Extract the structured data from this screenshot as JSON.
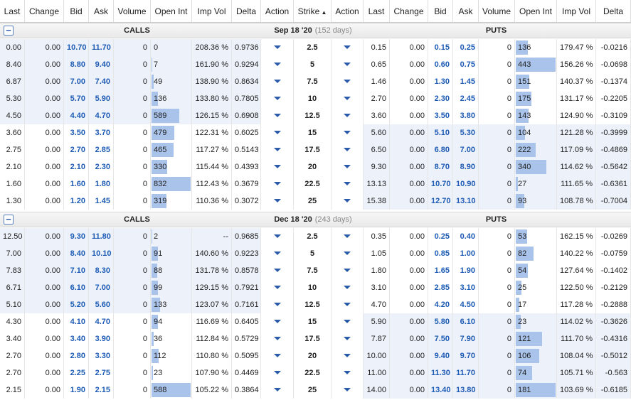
{
  "columns": [
    "Last",
    "Change",
    "Bid",
    "Ask",
    "Volume",
    "Open Int",
    "Imp Vol",
    "Delta",
    "Action",
    "Strike",
    "Action",
    "Last",
    "Change",
    "Bid",
    "Ask",
    "Volume",
    "Open Int",
    "Imp Vol",
    "Delta"
  ],
  "sections": [
    {
      "calls_label": "CALLS",
      "date": "Sep 18 '20",
      "days": "(152 days)",
      "puts_label": "PUTS",
      "rows": [
        {
          "itm": "calls",
          "cells": [
            "0.00",
            "0.00",
            "10.70",
            "11.70",
            "0",
            "0",
            "208.36 %",
            "0.9736",
            "2.5",
            "0.15",
            "0.00",
            "0.15",
            "0.25",
            "0",
            "136",
            "179.47 %",
            "-0.0216"
          ]
        },
        {
          "itm": "calls",
          "cells": [
            "8.40",
            "0.00",
            "8.80",
            "9.40",
            "0",
            "7",
            "161.90 %",
            "0.9294",
            "5",
            "0.65",
            "0.00",
            "0.60",
            "0.75",
            "0",
            "443",
            "156.26 %",
            "-0.0698"
          ]
        },
        {
          "itm": "calls",
          "cells": [
            "6.87",
            "0.00",
            "7.00",
            "7.40",
            "0",
            "49",
            "138.90 %",
            "0.8634",
            "7.5",
            "1.46",
            "0.00",
            "1.30",
            "1.45",
            "0",
            "151",
            "140.37 %",
            "-0.1374"
          ]
        },
        {
          "itm": "calls",
          "cells": [
            "5.30",
            "0.00",
            "5.70",
            "5.90",
            "0",
            "136",
            "133.80 %",
            "0.7805",
            "10",
            "2.70",
            "0.00",
            "2.30",
            "2.45",
            "0",
            "175",
            "131.17 %",
            "-0.2205"
          ]
        },
        {
          "itm": "calls",
          "cells": [
            "4.50",
            "0.00",
            "4.40",
            "4.70",
            "0",
            "589",
            "126.15 %",
            "0.6908",
            "12.5",
            "3.60",
            "0.00",
            "3.50",
            "3.80",
            "0",
            "143",
            "124.90 %",
            "-0.3109"
          ]
        },
        {
          "itm": "puts",
          "cells": [
            "3.60",
            "0.00",
            "3.50",
            "3.70",
            "0",
            "479",
            "122.31 %",
            "0.6025",
            "15",
            "5.60",
            "0.00",
            "5.10",
            "5.30",
            "0",
            "104",
            "121.28 %",
            "-0.3999"
          ]
        },
        {
          "itm": "puts",
          "cells": [
            "2.75",
            "0.00",
            "2.70",
            "2.85",
            "0",
            "465",
            "117.27 %",
            "0.5143",
            "17.5",
            "6.50",
            "0.00",
            "6.80",
            "7.00",
            "0",
            "222",
            "117.09 %",
            "-0.4869"
          ]
        },
        {
          "itm": "puts",
          "cells": [
            "2.10",
            "0.00",
            "2.10",
            "2.30",
            "0",
            "330",
            "115.44 %",
            "0.4393",
            "20",
            "9.30",
            "0.00",
            "8.70",
            "8.90",
            "0",
            "340",
            "114.62 %",
            "-0.5642"
          ]
        },
        {
          "itm": "puts",
          "cells": [
            "1.60",
            "0.00",
            "1.60",
            "1.80",
            "0",
            "832",
            "112.43 %",
            "0.3679",
            "22.5",
            "13.13",
            "0.00",
            "10.70",
            "10.90",
            "0",
            "27",
            "111.65 %",
            "-0.6361"
          ]
        },
        {
          "itm": "puts",
          "cells": [
            "1.30",
            "0.00",
            "1.20",
            "1.45",
            "0",
            "319",
            "110.36 %",
            "0.3072",
            "25",
            "15.38",
            "0.00",
            "12.70",
            "13.10",
            "0",
            "93",
            "108.78 %",
            "-0.7004"
          ]
        }
      ]
    },
    {
      "calls_label": "CALLS",
      "date": "Dec 18 '20",
      "days": "(243 days)",
      "puts_label": "PUTS",
      "rows": [
        {
          "itm": "calls",
          "cells": [
            "12.50",
            "0.00",
            "9.30",
            "11.80",
            "0",
            "2",
            "--",
            "0.9685",
            "2.5",
            "0.35",
            "0.00",
            "0.25",
            "0.40",
            "0",
            "53",
            "162.15 %",
            "-0.0269"
          ]
        },
        {
          "itm": "calls",
          "cells": [
            "7.00",
            "0.00",
            "8.40",
            "10.10",
            "0",
            "91",
            "140.60 %",
            "0.9223",
            "5",
            "1.05",
            "0.00",
            "0.85",
            "1.00",
            "0",
            "82",
            "140.22 %",
            "-0.0759"
          ]
        },
        {
          "itm": "calls",
          "cells": [
            "7.83",
            "0.00",
            "7.10",
            "8.30",
            "0",
            "88",
            "131.78 %",
            "0.8578",
            "7.5",
            "1.80",
            "0.00",
            "1.65",
            "1.90",
            "0",
            "54",
            "127.64 %",
            "-0.1402"
          ]
        },
        {
          "itm": "calls",
          "cells": [
            "6.71",
            "0.00",
            "6.10",
            "7.00",
            "0",
            "99",
            "129.15 %",
            "0.7921",
            "10",
            "3.10",
            "0.00",
            "2.85",
            "3.10",
            "0",
            "25",
            "122.50 %",
            "-0.2129"
          ]
        },
        {
          "itm": "calls",
          "cells": [
            "5.10",
            "0.00",
            "5.20",
            "5.60",
            "0",
            "133",
            "123.07 %",
            "0.7161",
            "12.5",
            "4.70",
            "0.00",
            "4.20",
            "4.50",
            "0",
            "17",
            "117.28 %",
            "-0.2888"
          ]
        },
        {
          "itm": "puts",
          "cells": [
            "4.30",
            "0.00",
            "4.10",
            "4.70",
            "0",
            "94",
            "116.69 %",
            "0.6405",
            "15",
            "5.90",
            "0.00",
            "5.80",
            "6.10",
            "0",
            "23",
            "114.02 %",
            "-0.3626"
          ]
        },
        {
          "itm": "puts",
          "cells": [
            "3.40",
            "0.00",
            "3.40",
            "3.90",
            "0",
            "36",
            "112.84 %",
            "0.5729",
            "17.5",
            "7.87",
            "0.00",
            "7.50",
            "7.90",
            "0",
            "121",
            "111.70 %",
            "-0.4316"
          ]
        },
        {
          "itm": "puts",
          "cells": [
            "2.70",
            "0.00",
            "2.80",
            "3.30",
            "0",
            "112",
            "110.80 %",
            "0.5095",
            "20",
            "10.00",
            "0.00",
            "9.40",
            "9.70",
            "0",
            "106",
            "108.04 %",
            "-0.5012"
          ]
        },
        {
          "itm": "puts",
          "cells": [
            "2.70",
            "0.00",
            "2.25",
            "2.75",
            "0",
            "23",
            "107.90 %",
            "0.4469",
            "22.5",
            "11.00",
            "0.00",
            "11.30",
            "11.70",
            "0",
            "74",
            "105.71 %",
            "-0.563"
          ]
        },
        {
          "itm": "puts",
          "cells": [
            "2.15",
            "0.00",
            "1.90",
            "2.15",
            "0",
            "588",
            "105.22 %",
            "0.3864",
            "25",
            "14.00",
            "0.00",
            "13.40",
            "13.80",
            "0",
            "181",
            "103.69 %",
            "-0.6185"
          ]
        }
      ]
    }
  ]
}
